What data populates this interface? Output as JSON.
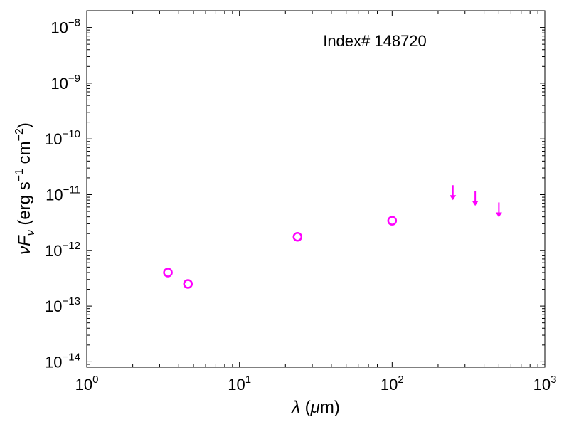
{
  "chart_data": {
    "type": "scatter",
    "title": "",
    "annotation": "Index# 148720",
    "xlabel": "λ (μm)",
    "ylabel": "νFν (erg s⁻¹ cm⁻²)",
    "xscale": "log",
    "yscale": "log",
    "xlim": [
      1,
      1000
    ],
    "ylim": [
      8e-15,
      2e-08
    ],
    "xticks": [
      {
        "value": 1,
        "base": "10",
        "exp": "0"
      },
      {
        "value": 10,
        "base": "10",
        "exp": "1"
      },
      {
        "value": 100,
        "base": "10",
        "exp": "2"
      },
      {
        "value": 1000,
        "base": "10",
        "exp": "3"
      }
    ],
    "yticks": [
      {
        "value": 1e-14,
        "base": "10",
        "exp": "−14"
      },
      {
        "value": 1e-13,
        "base": "10",
        "exp": "−13"
      },
      {
        "value": 1e-12,
        "base": "10",
        "exp": "−12"
      },
      {
        "value": 1e-11,
        "base": "10",
        "exp": "−11"
      },
      {
        "value": 1e-10,
        "base": "10",
        "exp": "−10"
      },
      {
        "value": 1e-09,
        "base": "10",
        "exp": "−9"
      },
      {
        "value": 1e-08,
        "base": "10",
        "exp": "−8"
      }
    ],
    "series": [
      {
        "marker": "open-circle",
        "color": "#ff00ff",
        "points": [
          {
            "x": 3.4,
            "y": 4e-13
          },
          {
            "x": 4.6,
            "y": 2.5e-13
          },
          {
            "x": 24,
            "y": 1.75e-12
          },
          {
            "x": 100,
            "y": 3.4e-12
          }
        ]
      },
      {
        "marker": "upper-limit-arrow",
        "color": "#ff00ff",
        "points": [
          {
            "x": 250,
            "y": 1.1e-11
          },
          {
            "x": 350,
            "y": 8.7e-12
          },
          {
            "x": 500,
            "y": 5.4e-12
          }
        ]
      }
    ]
  }
}
